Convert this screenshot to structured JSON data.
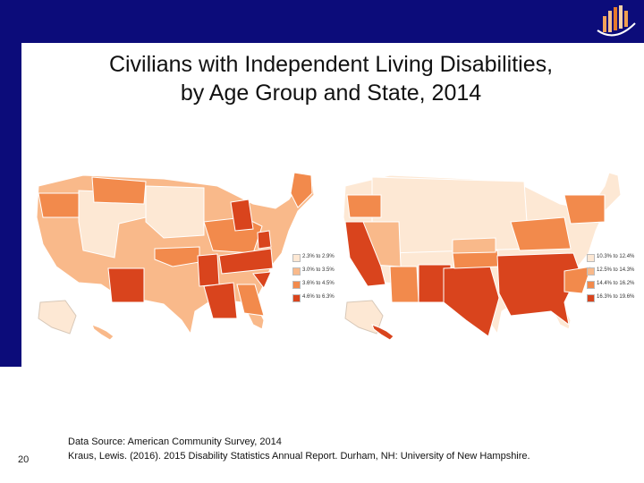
{
  "slide": {
    "title_line1": "Civilians with Independent Living Disabilities,",
    "title_line2": "by Age Group and State, 2014",
    "page_number": "20",
    "source_line1": "Data Source: American Community Survey, 2014",
    "source_line2": "Kraus, Lewis. (2016). 2015 Disability Statistics Annual Report. Durham, NH: University of New Hampshire.",
    "logo_icon": "bar-chart-logo-icon"
  },
  "maps": [
    {
      "legend": [
        {
          "label": "2.3% to 2.9%",
          "color": "#fde8d4"
        },
        {
          "label": "3.0% to 3.5%",
          "color": "#f9b98a"
        },
        {
          "label": "3.6% to 4.5%",
          "color": "#f28a4c"
        },
        {
          "label": "4.6% to 6.3%",
          "color": "#d9441d"
        }
      ]
    },
    {
      "legend": [
        {
          "label": "10.3% to 12.4%",
          "color": "#fde8d4"
        },
        {
          "label": "12.5% to 14.3%",
          "color": "#f9b98a"
        },
        {
          "label": "14.4% to 16.2%",
          "color": "#f28a4c"
        },
        {
          "label": "16.3% to 19.6%",
          "color": "#d9441d"
        }
      ]
    }
  ]
}
